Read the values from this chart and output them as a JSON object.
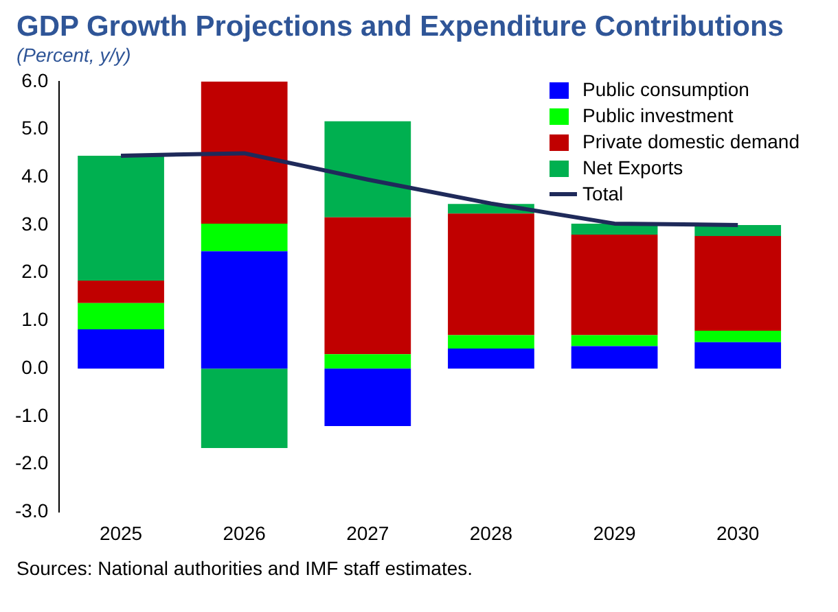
{
  "chart_data": {
    "type": "bar",
    "stacked": true,
    "title": "GDP Growth Projections and Expenditure Contributions",
    "subtitle": "(Percent, y/y)",
    "categories": [
      "2025",
      "2026",
      "2027",
      "2028",
      "2029",
      "2030"
    ],
    "series": [
      {
        "name": "Public consumption",
        "color": "#0000ff",
        "values": [
          0.82,
          2.45,
          -1.2,
          0.42,
          0.47,
          0.55
        ]
      },
      {
        "name": "Public investment",
        "color": "#00ff00",
        "values": [
          0.55,
          0.58,
          0.3,
          0.28,
          0.23,
          0.24
        ]
      },
      {
        "name": "Private domestic demand",
        "color": "#c00000",
        "values": [
          0.47,
          2.97,
          2.86,
          2.54,
          2.1,
          1.98
        ]
      },
      {
        "name": "Net Exports",
        "color": "#00b050",
        "values": [
          2.61,
          -1.66,
          2.01,
          0.2,
          0.23,
          0.23
        ]
      },
      {
        "name": "Total",
        "type": "line",
        "color": "#1f2a5a",
        "values": [
          4.45,
          4.5,
          3.95,
          3.45,
          3.03,
          3.0
        ]
      }
    ],
    "ylim": [
      -3,
      6
    ],
    "yticks": [
      {
        "value": -3,
        "label": "-3.0"
      },
      {
        "value": -2,
        "label": "-2.0"
      },
      {
        "value": -1,
        "label": "-1.0"
      },
      {
        "value": 0,
        "label": "0.0"
      },
      {
        "value": 1,
        "label": "1.0"
      },
      {
        "value": 2,
        "label": "2.0"
      },
      {
        "value": 3,
        "label": "3.0"
      },
      {
        "value": 4,
        "label": "4.0"
      },
      {
        "value": 5,
        "label": "5.0"
      },
      {
        "value": 6,
        "label": "6.0"
      }
    ],
    "grid": false,
    "legend": "top right",
    "marker": "none",
    "line_style": "solid",
    "annotations": [
      "Sources: National authorities and IMF staff estimates."
    ]
  }
}
